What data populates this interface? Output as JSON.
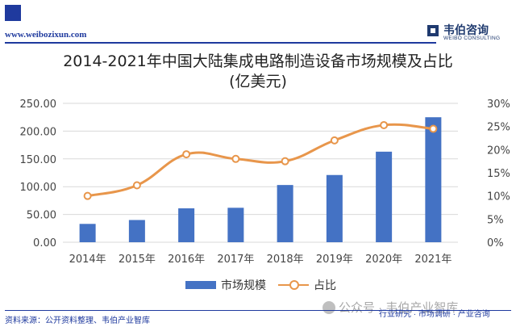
{
  "header": {
    "url": "www.weibozixun.com",
    "logo_name": "韦伯咨询",
    "logo_sub": "WEIBO CONSULTING"
  },
  "footer": {
    "source": "资料来源：公开资料整理、韦伯产业智库",
    "tagline": "行业研究 · 市场调研 · 产业咨询",
    "watermark": "公众号 · 韦伯产业智库"
  },
  "colors": {
    "bar": "#4472c4",
    "line": "#e8964b",
    "brand": "#1f3a9e"
  },
  "chart_data": {
    "type": "bar",
    "title": "2014-2021年中国大陆集成电路制造设备市场规模及占比",
    "subtitle": "(亿美元)",
    "categories": [
      "2014年",
      "2015年",
      "2016年",
      "2017年",
      "2018年",
      "2019年",
      "2020年",
      "2021年"
    ],
    "series": [
      {
        "name": "市场规模",
        "type": "bar",
        "axis": "left",
        "values": [
          33.0,
          40.0,
          61.0,
          62.0,
          103.0,
          121.0,
          163.0,
          225.0
        ]
      },
      {
        "name": "占比",
        "type": "line",
        "axis": "right",
        "values": [
          10.0,
          12.3,
          19.0,
          18.0,
          17.5,
          22.0,
          25.3,
          24.5
        ]
      }
    ],
    "ylim": [
      0,
      250
    ],
    "y2lim": [
      0,
      30
    ],
    "y_ticks": [
      "0.00",
      "50.00",
      "100.00",
      "150.00",
      "200.00",
      "250.00"
    ],
    "y2_ticks": [
      "0%",
      "5%",
      "10%",
      "15%",
      "20%",
      "25%",
      "30%"
    ],
    "grid": true,
    "legend_position": "bottom"
  }
}
